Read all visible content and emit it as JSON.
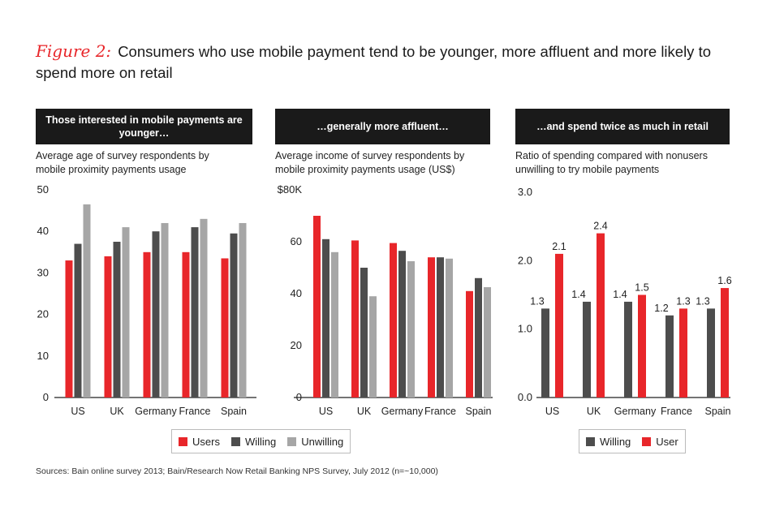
{
  "figure_label": "Figure 2:",
  "title": "Consumers who use mobile payment tend to be younger, more affluent and more likely to spend more on retail",
  "colors": {
    "red": "#e8262a",
    "dark": "#4d4d4d",
    "light": "#a6a6a6"
  },
  "panels": [
    {
      "header": "Those interested in mobile payments are younger…",
      "subtitle": "Average age of survey respondents by mobile proximity payments usage"
    },
    {
      "header": "…generally more affluent…",
      "subtitle": "Average income of survey respondents by mobile proximity payments usage (US$)"
    },
    {
      "header": "…and spend twice as much in retail",
      "subtitle": "Ratio of spending compared with nonusers unwilling to try mobile payments"
    }
  ],
  "legend1": [
    "Users",
    "Willing",
    "Unwilling"
  ],
  "legend3": [
    "Willing",
    "User"
  ],
  "source": "Sources: Bain online survey 2013; Bain/Research Now Retail Banking NPS Survey, July 2012 (n=~10,000)",
  "chart_data": [
    {
      "type": "bar",
      "title": "Those interested in mobile payments are younger…",
      "ylabel": "Average age of survey respondents by mobile proximity payments usage",
      "categories": [
        "US",
        "UK",
        "Germany",
        "France",
        "Spain"
      ],
      "ylim": [
        0,
        50
      ],
      "yticks": [
        "0",
        "10",
        "20",
        "30",
        "40",
        "50"
      ],
      "series": [
        {
          "name": "Users",
          "color": "red",
          "values": [
            33,
            34,
            35,
            35,
            33.5
          ]
        },
        {
          "name": "Willing",
          "color": "dark",
          "values": [
            37,
            37.5,
            40,
            41,
            39.5
          ]
        },
        {
          "name": "Unwilling",
          "color": "light",
          "values": [
            46.5,
            41,
            42,
            43,
            42
          ]
        }
      ]
    },
    {
      "type": "bar",
      "title": "…generally more affluent…",
      "ylabel": "Average income of survey respondents by mobile proximity payments usage (US$)",
      "categories": [
        "US",
        "UK",
        "Germany",
        "France",
        "Spain"
      ],
      "ylim": [
        0,
        80
      ],
      "yticks": [
        "0",
        "20",
        "40",
        "60",
        "$80K"
      ],
      "series": [
        {
          "name": "Users",
          "color": "red",
          "values": [
            70,
            60.5,
            59.5,
            54,
            41
          ]
        },
        {
          "name": "Willing",
          "color": "dark",
          "values": [
            61,
            50,
            56.5,
            54,
            46
          ]
        },
        {
          "name": "Unwilling",
          "color": "light",
          "values": [
            56,
            39,
            52.5,
            53.5,
            42.5
          ]
        }
      ]
    },
    {
      "type": "bar",
      "title": "…and spend twice as much in retail",
      "ylabel": "Ratio of spending compared with nonusers unwilling to try mobile payments",
      "categories": [
        "US",
        "UK",
        "Germany",
        "France",
        "Spain"
      ],
      "ylim": [
        0,
        3
      ],
      "yticks": [
        "0.0",
        "1.0",
        "2.0",
        "3.0"
      ],
      "series": [
        {
          "name": "Willing",
          "color": "dark",
          "values": [
            1.3,
            1.4,
            1.4,
            1.2,
            1.3
          ],
          "labels": [
            "1.3",
            "1.4",
            "1.4",
            "1.2",
            "1.3"
          ]
        },
        {
          "name": "User",
          "color": "red",
          "values": [
            2.1,
            2.4,
            1.5,
            1.3,
            1.6
          ],
          "labels": [
            "2.1",
            "2.4",
            "1.5",
            "1.3",
            "1.6"
          ]
        }
      ]
    }
  ]
}
